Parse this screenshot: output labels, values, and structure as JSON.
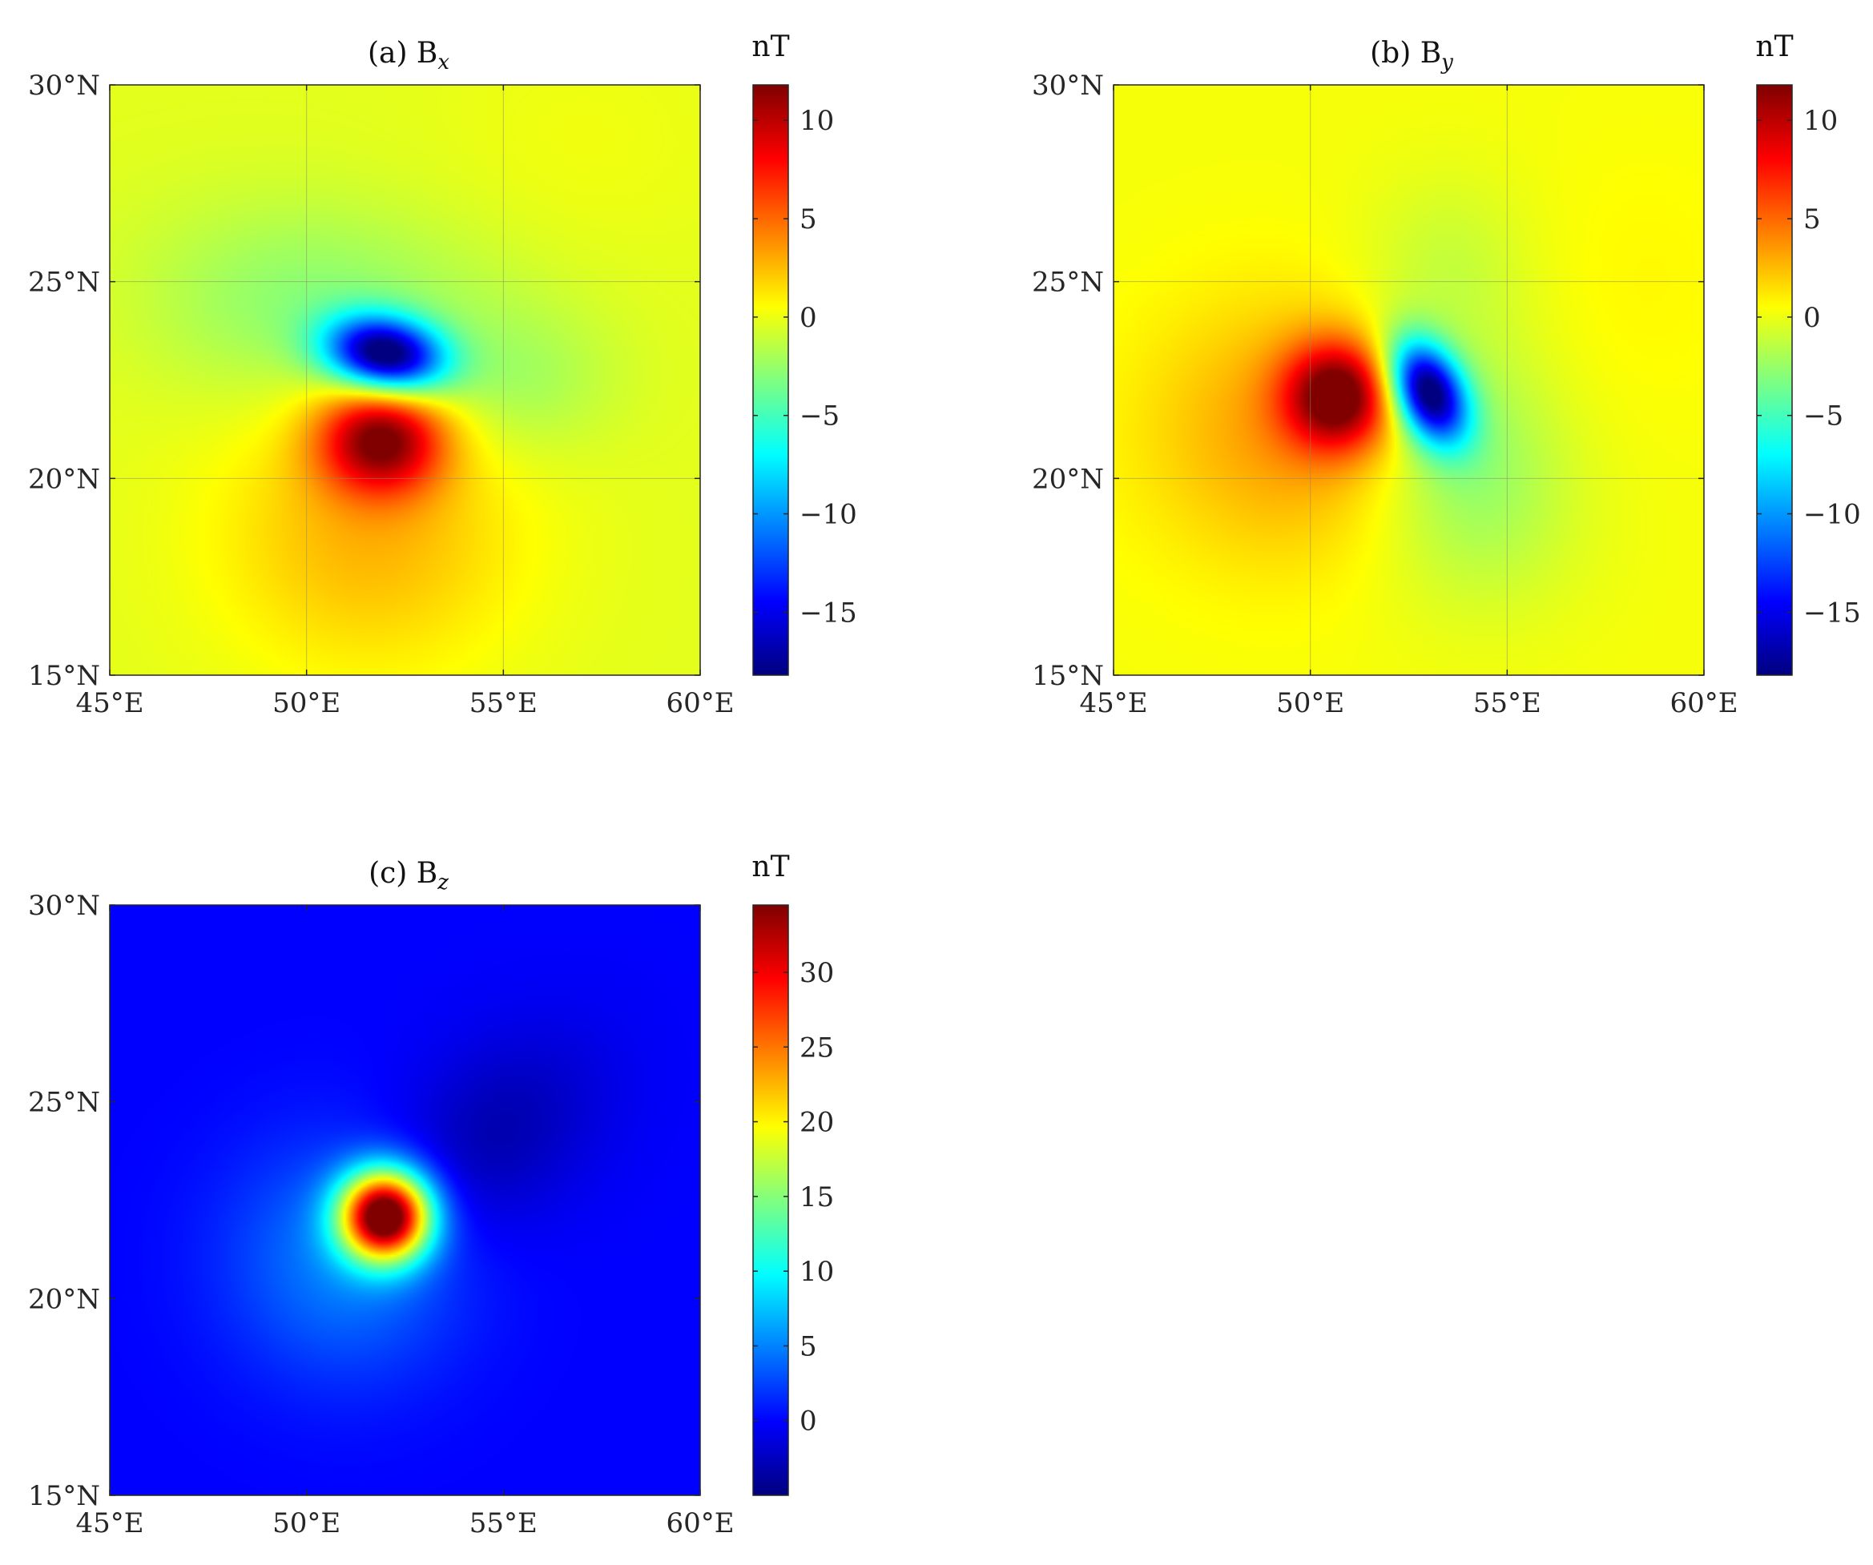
{
  "chart_data": [
    {
      "type": "heatmap",
      "panel": "a",
      "title": "(a) B",
      "title_sub": "x",
      "colorbar_label": "nT",
      "xlim": [
        45,
        60
      ],
      "ylim": [
        15,
        30
      ],
      "x_ticks": [
        45,
        50,
        55,
        60
      ],
      "x_tick_labels": [
        "45°E",
        "50°E",
        "55°E",
        "60°E"
      ],
      "y_ticks": [
        15,
        20,
        25,
        30
      ],
      "y_tick_labels": [
        "15°N",
        "20°N",
        "25°N",
        "30°N"
      ],
      "grid": true,
      "clim": [
        -18.2,
        11.8
      ],
      "colorbar_ticks": [
        10,
        5,
        0,
        -5,
        -10,
        -15
      ],
      "colorbar_tick_labels": [
        "10",
        "5",
        "0",
        "−5",
        "−10",
        "−15"
      ],
      "colormap": "jet",
      "features": [
        {
          "kind": "min",
          "lon": 52.0,
          "lat": 23.1,
          "value": -18
        },
        {
          "kind": "max",
          "lon": 51.9,
          "lat": 21.0,
          "value": 11.5
        }
      ]
    },
    {
      "type": "heatmap",
      "panel": "b",
      "title": "(b) B",
      "title_sub": "y",
      "colorbar_label": "nT",
      "xlim": [
        45,
        60
      ],
      "ylim": [
        15,
        30
      ],
      "x_ticks": [
        45,
        50,
        55,
        60
      ],
      "x_tick_labels": [
        "45°E",
        "50°E",
        "55°E",
        "60°E"
      ],
      "y_ticks": [
        15,
        20,
        25,
        30
      ],
      "y_tick_labels": [
        "15°N",
        "20°N",
        "25°N",
        "30°N"
      ],
      "grid": true,
      "clim": [
        -18.2,
        11.8
      ],
      "colorbar_ticks": [
        10,
        5,
        0,
        -5,
        -10,
        -15
      ],
      "colorbar_tick_labels": [
        "10",
        "5",
        "0",
        "−5",
        "−10",
        "−15"
      ],
      "colormap": "jet",
      "features": [
        {
          "kind": "max",
          "lon": 50.7,
          "lat": 22.1,
          "value": 11.5
        },
        {
          "kind": "min",
          "lon": 53.0,
          "lat": 22.2,
          "value": -18
        }
      ]
    },
    {
      "type": "heatmap",
      "panel": "c",
      "title": "(c) B",
      "title_sub": "z",
      "colorbar_label": "nT",
      "xlim": [
        45,
        60
      ],
      "ylim": [
        15,
        30
      ],
      "x_ticks": [
        45,
        50,
        55,
        60
      ],
      "x_tick_labels": [
        "45°E",
        "50°E",
        "55°E",
        "60°E"
      ],
      "y_ticks": [
        15,
        20,
        25,
        30
      ],
      "y_tick_labels": [
        "15°N",
        "20°N",
        "25°N",
        "30°N"
      ],
      "grid": false,
      "clim": [
        -5,
        34.5
      ],
      "colorbar_ticks": [
        30,
        25,
        20,
        15,
        10,
        5,
        0
      ],
      "colorbar_tick_labels": [
        "30",
        "25",
        "20",
        "15",
        "10",
        "5",
        "0"
      ],
      "colormap": "jet",
      "features": [
        {
          "kind": "max",
          "lon": 52.0,
          "lat": 22.1,
          "value": 34
        },
        {
          "kind": "min",
          "lon": 54.5,
          "lat": 24.0,
          "value": -4
        }
      ]
    }
  ]
}
